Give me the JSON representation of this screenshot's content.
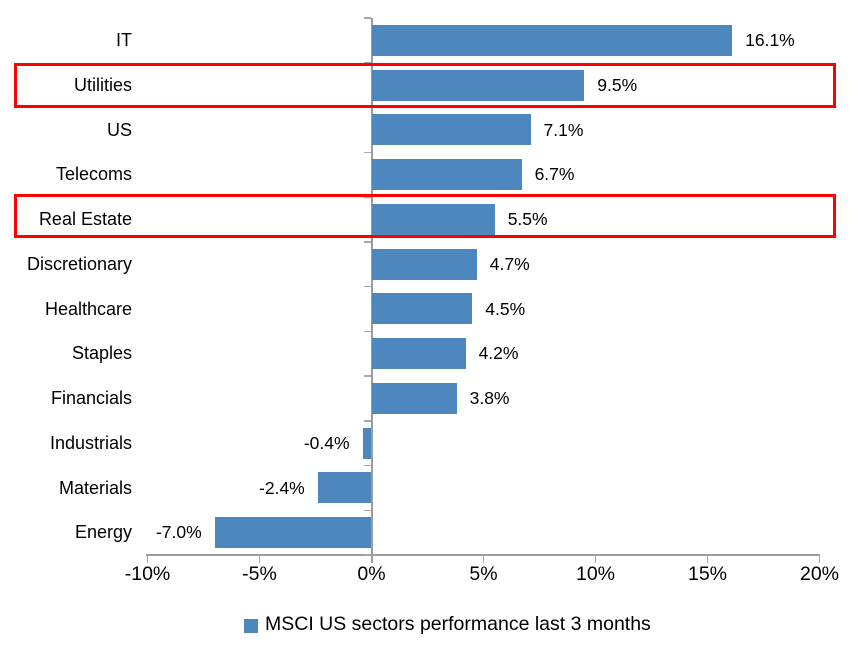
{
  "chart_data": {
    "type": "bar",
    "orientation": "horizontal",
    "title": "",
    "categories": [
      "IT",
      "Utilities",
      "US",
      "Telecoms",
      "Real Estate",
      "Discretionary",
      "Healthcare",
      "Staples",
      "Financials",
      "Industrials",
      "Materials",
      "Energy"
    ],
    "values": [
      16.1,
      9.5,
      7.1,
      6.7,
      5.5,
      4.7,
      4.5,
      4.2,
      3.8,
      -0.4,
      -2.4,
      -7.0
    ],
    "data_labels": [
      "16.1%",
      "9.5%",
      "7.1%",
      "6.7%",
      "5.5%",
      "4.7%",
      "4.5%",
      "4.2%",
      "3.8%",
      "-0.4%",
      "-2.4%",
      "-7.0%"
    ],
    "x_ticks": [
      "-10%",
      "-5%",
      "0%",
      "5%",
      "10%",
      "15%",
      "20%"
    ],
    "x_tick_values": [
      -10,
      -5,
      0,
      5,
      10,
      15,
      20
    ],
    "xlim": [
      -10,
      20
    ],
    "grid": "off",
    "legend": "MSCI US sectors performance last 3 months",
    "legend_position": "bottom",
    "bar_color": "#4e87bd",
    "axis_color": "#9c9c9c",
    "highlight_color": "#fe0000",
    "highlighted_categories": [
      "Utilities",
      "Real Estate"
    ]
  }
}
